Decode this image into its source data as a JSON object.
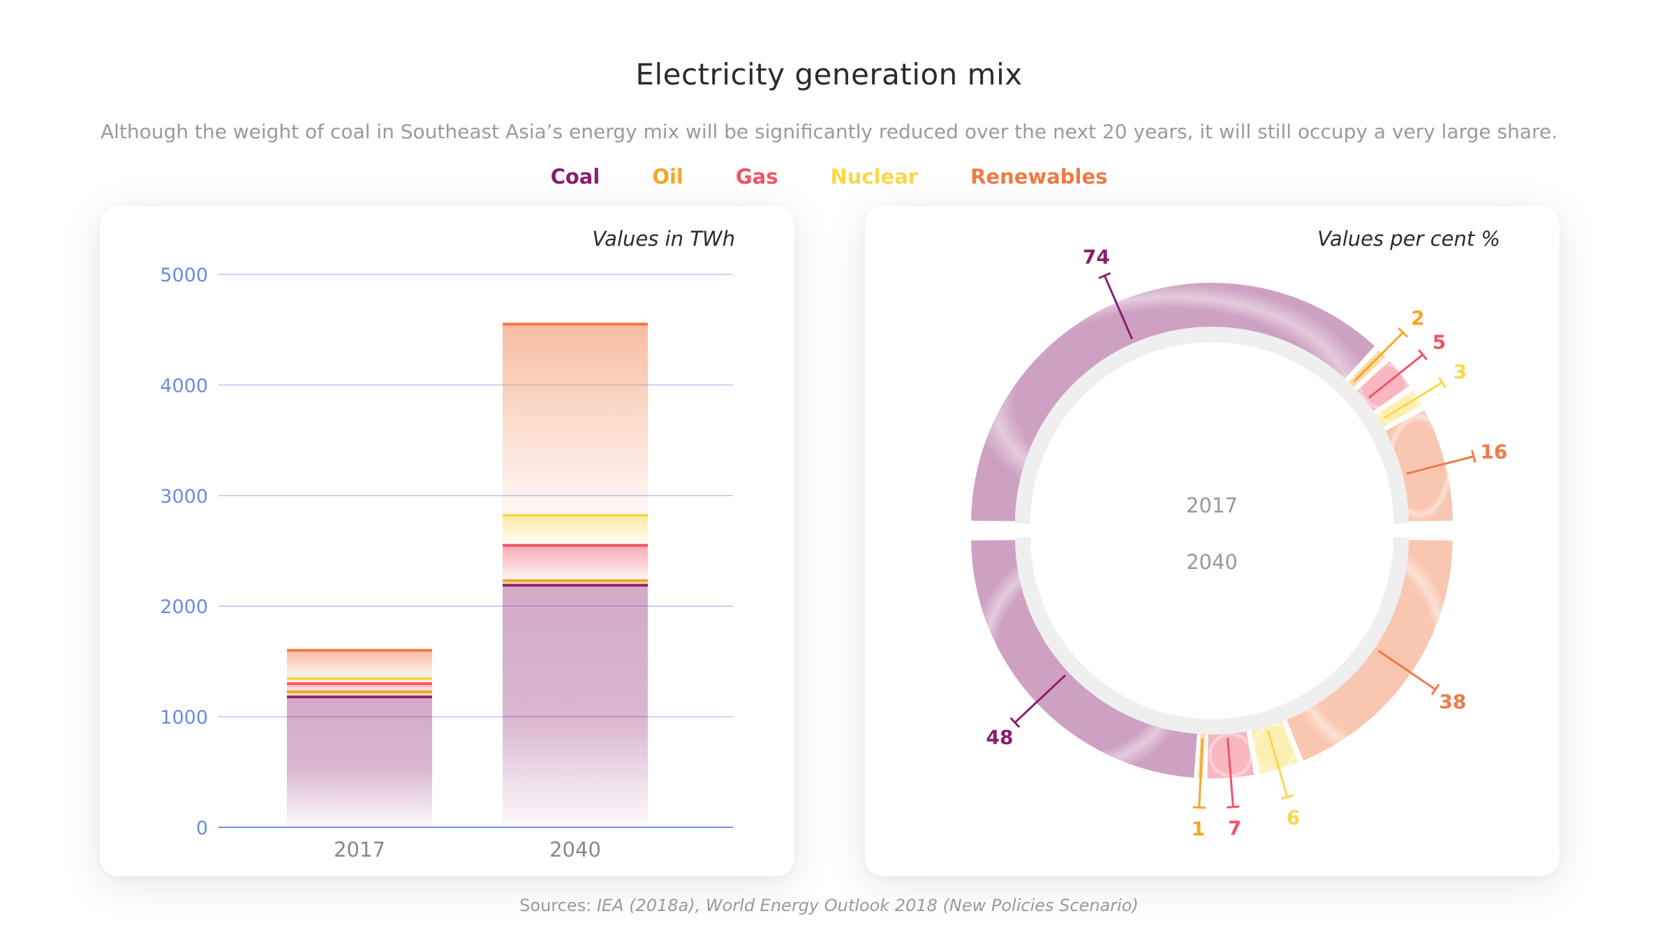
{
  "title": "Electricity generation mix",
  "subtitle": "Although the weight of coal in Southeast Asia’s energy mix will be significantly reduced  over the next 20 years, it will still occupy a very large share.",
  "legend": [
    {
      "label": "Coal",
      "color": "#8a1e6e"
    },
    {
      "label": "Oil",
      "color": "#f5a623"
    },
    {
      "label": "Gas",
      "color": "#ef5466"
    },
    {
      "label": "Nuclear",
      "color": "#f9d84a"
    },
    {
      "label": "Renewables",
      "color": "#f07a45"
    }
  ],
  "source": {
    "prefix": "Sources: ",
    "text": "IEA (2018a), World Energy Outlook 2018 (New Policies Scenario)"
  },
  "chart_data": [
    {
      "type": "bar",
      "stacked": true,
      "note": "Values in TWh",
      "categories": [
        "2017",
        "2040"
      ],
      "ylim": [
        0,
        5000
      ],
      "yticks": [
        "0",
        "1000",
        "2000",
        "3000",
        "4000",
        "5000"
      ],
      "series": [
        {
          "name": "Coal",
          "values": [
            1180,
            2190
          ]
        },
        {
          "name": "Oil",
          "values": [
            45,
            40
          ]
        },
        {
          "name": "Gas",
          "values": [
            75,
            320
          ]
        },
        {
          "name": "Nuclear",
          "values": [
            45,
            270
          ]
        },
        {
          "name": "Renewables",
          "values": [
            255,
            1730
          ]
        }
      ]
    },
    {
      "type": "pie",
      "variant": "split-ring",
      "note": "Values per cent %",
      "rings": [
        {
          "label": "2017",
          "values": [
            {
              "name": "Coal",
              "value": 74
            },
            {
              "name": "Oil",
              "value": 2
            },
            {
              "name": "Gas",
              "value": 5
            },
            {
              "name": "Nuclear",
              "value": 3
            },
            {
              "name": "Renewables",
              "value": 16
            }
          ]
        },
        {
          "label": "2040",
          "values": [
            {
              "name": "Coal",
              "value": 48
            },
            {
              "name": "Oil",
              "value": 1
            },
            {
              "name": "Gas",
              "value": 7
            },
            {
              "name": "Nuclear",
              "value": 6
            },
            {
              "name": "Renewables",
              "value": 38
            }
          ]
        }
      ]
    }
  ]
}
